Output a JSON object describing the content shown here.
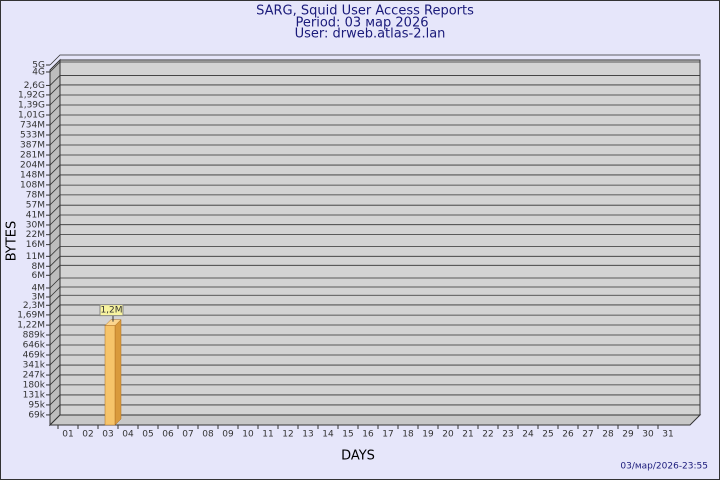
{
  "chart_data": {
    "type": "bar",
    "title": "SARG, Squid User Access Reports",
    "subtitle": "Period: 03 мар 2026",
    "user": "User: drweb.atlas-2.lan",
    "footer": "03/мар/2026-23:55",
    "xlabel": "DAYS",
    "ylabel": "BYTES",
    "categories": [
      "01",
      "02",
      "03",
      "04",
      "05",
      "06",
      "07",
      "08",
      "09",
      "10",
      "11",
      "12",
      "13",
      "14",
      "15",
      "16",
      "17",
      "18",
      "19",
      "20",
      "21",
      "22",
      "23",
      "24",
      "25",
      "26",
      "27",
      "28",
      "29",
      "30",
      "31"
    ],
    "values": [
      null,
      null,
      1200000,
      null,
      null,
      null,
      null,
      null,
      null,
      null,
      null,
      null,
      null,
      null,
      null,
      null,
      null,
      null,
      null,
      null,
      null,
      null,
      null,
      null,
      null,
      null,
      null,
      null,
      null,
      null,
      null
    ],
    "value_labels": [
      null,
      null,
      "1,2M",
      null,
      null,
      null,
      null,
      null,
      null,
      null,
      null,
      null,
      null,
      null,
      null,
      null,
      null,
      null,
      null,
      null,
      null,
      null,
      null,
      null,
      null,
      null,
      null,
      null,
      null,
      null,
      null
    ],
    "color": "#f6c46a",
    "log_scale": true,
    "grid": true,
    "ylim": [
      50000,
      5000000000
    ],
    "yticks": [
      {
        "value": 69000,
        "label": "69k"
      },
      {
        "value": 95000,
        "label": "95k"
      },
      {
        "value": 131000,
        "label": "131k"
      },
      {
        "value": 180000,
        "label": "180k"
      },
      {
        "value": 247000,
        "label": "247k"
      },
      {
        "value": 341000,
        "label": "341k"
      },
      {
        "value": 469000,
        "label": "469k"
      },
      {
        "value": 646000,
        "label": "646k"
      },
      {
        "value": 889000,
        "label": "889k"
      },
      {
        "value": 1220000,
        "label": "1,22M"
      },
      {
        "value": 1690000,
        "label": "1,69M"
      },
      {
        "value": 2300000,
        "label": "2,3M"
      },
      {
        "value": 3000000,
        "label": "3M"
      },
      {
        "value": 4000000,
        "label": "4M"
      },
      {
        "value": 6000000,
        "label": "6M"
      },
      {
        "value": 8000000,
        "label": "8M"
      },
      {
        "value": 11000000,
        "label": "11M"
      },
      {
        "value": 16000000,
        "label": "16M"
      },
      {
        "value": 22000000,
        "label": "22M"
      },
      {
        "value": 30000000,
        "label": "30M"
      },
      {
        "value": 41000000,
        "label": "41M"
      },
      {
        "value": 57000000,
        "label": "57M"
      },
      {
        "value": 78000000,
        "label": "78M"
      },
      {
        "value": 108000000,
        "label": "108M"
      },
      {
        "value": 148000000,
        "label": "148M"
      },
      {
        "value": 204000000,
        "label": "204M"
      },
      {
        "value": 281000000,
        "label": "281M"
      },
      {
        "value": 387000000,
        "label": "387M"
      },
      {
        "value": 533000000,
        "label": "533M"
      },
      {
        "value": 734000000,
        "label": "734M"
      },
      {
        "value": 1010000000,
        "label": "1,01G"
      },
      {
        "value": 1390000000,
        "label": "1,39G"
      },
      {
        "value": 1920000000,
        "label": "1,92G"
      },
      {
        "value": 2600000000,
        "label": "2,6G"
      },
      {
        "value": 4000000000,
        "label": "4G"
      },
      {
        "value": 5000000000,
        "label": "5G"
      }
    ]
  }
}
